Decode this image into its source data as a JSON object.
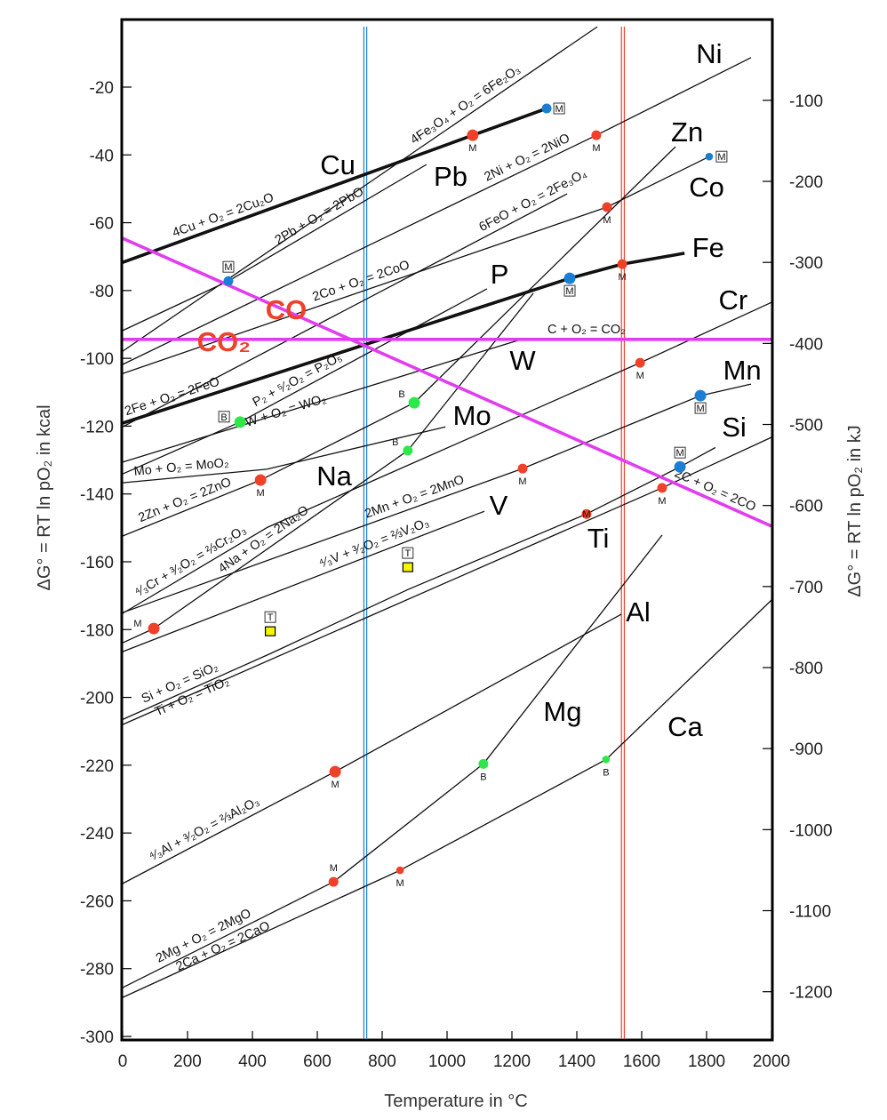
{
  "chart_data": {
    "type": "line",
    "xlabel": "Temperature in °C",
    "ylabel": "ΔG° = RT ln pO₂ in kcal",
    "ylabel_right": "ΔG° = RT ln pO₂ in kJ",
    "xlim": [
      0,
      2000
    ],
    "ylim": [
      -300,
      0
    ],
    "x_ticks": [
      0,
      200,
      400,
      600,
      800,
      1000,
      1200,
      1400,
      1600,
      1800,
      2000
    ],
    "y_ticks": [
      -20,
      -40,
      -60,
      -80,
      -100,
      -120,
      -140,
      -160,
      -180,
      -200,
      -220,
      -240,
      -260,
      -280,
      -300
    ],
    "y_right_ticks_kJ": [
      -100,
      -200,
      -300,
      -400,
      -500,
      -600,
      -700,
      -800,
      -900,
      -1000,
      -1100,
      -1200
    ],
    "grid": false,
    "colors": {
      "line": "#111111",
      "carbon": "#e23cf0",
      "melting": "#f0402a",
      "melting_boxed": "#1a7fd4",
      "boiling": "#2ee84a",
      "transition": "#f5f500",
      "red_text": "#f0402a",
      "vline_blue": "#1a7fd4",
      "vline_red": "#f0402a"
    },
    "series": [
      {
        "name": "Cu",
        "equation": "4Cu + O₂ = 2Cu₂O",
        "eq_at": 320,
        "weight": "thick",
        "x": [
          0,
          1079,
          1307
        ],
        "y": [
          -71.7,
          -34.2,
          -26.3
        ]
      },
      {
        "name": "",
        "equation": "4Fe₃O₄ + O₂ = 6Fe₂O₃",
        "eq_at": 1074,
        "weight": "thin",
        "x": [
          0,
          1463
        ],
        "y": [
          -97.9,
          -2.2
        ]
      },
      {
        "name": "Ni",
        "equation": "2Ni + O₂ = 2NiO",
        "eq_at": 1260,
        "weight": "thin",
        "x": [
          0,
          1460,
          1937
        ],
        "y": [
          -101.8,
          -34.2,
          -11.3
        ]
      },
      {
        "name": "Pb",
        "equation": "2Pb + O₂ = 2PbO",
        "eq_at": 622,
        "weight": "thin",
        "x": [
          0,
          326,
          937
        ],
        "y": [
          -91.8,
          -77.2,
          -42.8
        ]
      },
      {
        "name": "Co",
        "equation": "2Co + O₂ = 2CoO",
        "eq_at": 745,
        "weight": "thin",
        "x": [
          0,
          1493,
          1808
        ],
        "y": [
          -104.5,
          -55.4,
          -40.5
        ]
      },
      {
        "name": "",
        "equation": "6FeO + O₂ = 2Fe₃O₄",
        "eq_at": 1279,
        "weight": "thin",
        "x": [
          0,
          1370
        ],
        "y": [
          -120.2,
          -51.5
        ]
      },
      {
        "name": "Fe",
        "equation": "2Fe + O₂ = 2FeO",
        "eq_at": 162,
        "weight": "thick",
        "x": [
          0,
          1378,
          1540,
          1732
        ],
        "y": [
          -119.1,
          -76.4,
          -72.2,
          -69.0
        ]
      },
      {
        "name": "P",
        "equation": "P₂ + ⁵⁄₂O₂ = P₂O₅",
        "eq_at": 553,
        "weight": "thin",
        "x": [
          0,
          362,
          1123
        ],
        "y": [
          -134.1,
          -118.8,
          -79.5
        ]
      },
      {
        "name": "W",
        "equation": "W + O₂ = WO₂",
        "eq_at": 504,
        "weight": "thin",
        "x": [
          0,
          1225
        ],
        "y": [
          -130.6,
          -94.5
        ]
      },
      {
        "name": "Mo",
        "equation": "Mo + O₂ = MoO₂",
        "eq_at": 184,
        "weight": "thin",
        "x": [
          0,
          444,
          995
        ],
        "y": [
          -136.7,
          -132.7,
          -120.2
        ]
      },
      {
        "name": "Zn",
        "equation": "2Zn + O₂ = 2ZnO",
        "eq_at": 203,
        "weight": "thin",
        "x": [
          0,
          425,
          899,
          1704
        ],
        "y": [
          -152.4,
          -135.9,
          -113.1,
          -37.6
        ]
      },
      {
        "name": "Na",
        "equation": "4Na + O₂ = 2Na₂O",
        "eq_at": 452,
        "weight": "thin",
        "x": [
          0,
          96,
          879,
          1266
        ],
        "y": [
          -183.9,
          -179.7,
          -127.2,
          -80.8
        ]
      },
      {
        "name": "Cr",
        "equation": "⁴⁄₃Cr + ³⁄₂O₂ = ⅔Cr₂O₃",
        "eq_at": 225,
        "weight": "thin",
        "x": [
          0,
          447,
          1595,
          2000
        ],
        "y": [
          -175.2,
          -149.8,
          -101.3,
          -83.5
        ]
      },
      {
        "name": "Mn",
        "equation": "2Mn + O₂ = 2MnO",
        "eq_at": 910,
        "weight": "thin",
        "x": [
          0,
          1233,
          1781,
          1937
        ],
        "y": [
          -175.0,
          -132.5,
          -111.0,
          -107.6
        ]
      },
      {
        "name": "V",
        "equation": "⁴⁄₃V + ³⁄₂O₂ = ⅔V₂O₃",
        "eq_at": 786,
        "weight": "thin",
        "x": [
          0,
          1115
        ],
        "y": [
          -186.5,
          -145.1
        ]
      },
      {
        "name": "Si",
        "equation": "Si + O₂ = SiO₂",
        "eq_at": 189,
        "weight": "thin",
        "x": [
          0,
          455,
          879,
          1430,
          1718,
          1827
        ],
        "y": [
          -206.5,
          -187.1,
          -168.2,
          -145.9,
          -132.0,
          -126.3
        ]
      },
      {
        "name": "Ti",
        "equation": "Ti + O₂ = TiO₂",
        "eq_at": 211,
        "weight": "thin",
        "x": [
          0,
          1663,
          2000
        ],
        "y": [
          -208.0,
          -138.2,
          -123.3
        ]
      },
      {
        "name": "Al",
        "equation": "⁴⁄₃Al + ³⁄₂O₂ = ⅔Al₂O₃",
        "eq_at": 266,
        "weight": "thin",
        "x": [
          0,
          655,
          1537
        ],
        "y": [
          -254.9,
          -221.9,
          -175.5
        ]
      },
      {
        "name": "Mg",
        "equation": "2Mg + O₂ = 2MgO",
        "eq_at": 263,
        "weight": "thin",
        "x": [
          0,
          650,
          1112,
          1663
        ],
        "y": [
          -285.6,
          -254.4,
          -219.6,
          -152.1
        ]
      },
      {
        "name": "Ca",
        "equation": "2Ca + O₂ = 2CaO",
        "eq_at": 315,
        "weight": "thin",
        "x": [
          0,
          855,
          1490,
          2000
        ],
        "y": [
          -288.5,
          -251.0,
          -218.3,
          -171.3
        ]
      },
      {
        "name": "CO₂",
        "equation": "C + O₂ = CO₂",
        "eq_at": 1430,
        "weight": "carbon",
        "x": [
          0,
          2000
        ],
        "y": [
          -94.4,
          -94.4
        ]
      },
      {
        "name": "CO",
        "equation": "2C + O₂ = 2CO",
        "eq_at": 1814,
        "weight": "carbon",
        "x": [
          0,
          2000
        ],
        "y": [
          -64.6,
          -149.5
        ]
      }
    ],
    "markers": [
      {
        "kind": "M",
        "style": "plain",
        "size": "large",
        "x": 1079,
        "y": -34.2
      },
      {
        "kind": "M",
        "style": "plain",
        "size": "medium",
        "x": 1460,
        "y": -34.2
      },
      {
        "kind": "M",
        "style": "plain",
        "size": "medium",
        "x": 1493,
        "y": -55.4
      },
      {
        "kind": "M",
        "style": "plain",
        "size": "medium",
        "x": 1540,
        "y": -72.2
      },
      {
        "kind": "M",
        "style": "plain",
        "size": "large",
        "x": 425,
        "y": -135.9
      },
      {
        "kind": "M",
        "style": "plain",
        "size": "large",
        "x": 96,
        "y": -179.7,
        "label_side": "left"
      },
      {
        "kind": "M",
        "style": "plain",
        "size": "medium",
        "x": 1595,
        "y": -101.3
      },
      {
        "kind": "M",
        "style": "plain",
        "size": "medium",
        "x": 1233,
        "y": -132.5
      },
      {
        "kind": "M",
        "style": "plain",
        "size": "medium",
        "x": 1430,
        "y": -145.9
      },
      {
        "kind": "M",
        "style": "plain",
        "size": "medium",
        "x": 1663,
        "y": -138.2
      },
      {
        "kind": "M",
        "style": "plain",
        "size": "large",
        "x": 655,
        "y": -221.9
      },
      {
        "kind": "M",
        "style": "plain",
        "size": "medium",
        "x": 650,
        "y": -254.4,
        "label_side": "above"
      },
      {
        "kind": "M",
        "style": "plain",
        "size": "small",
        "x": 855,
        "y": -251.0
      },
      {
        "kind": "M",
        "style": "boxed",
        "size": "medium",
        "x": 1307,
        "y": -26.3,
        "label_side": "right"
      },
      {
        "kind": "M",
        "style": "boxed",
        "size": "medium",
        "x": 326,
        "y": -77.2,
        "label_side": "above"
      },
      {
        "kind": "M",
        "style": "boxed",
        "size": "small",
        "x": 1808,
        "y": -40.5,
        "label_side": "right"
      },
      {
        "kind": "M",
        "style": "boxed",
        "size": "large",
        "x": 1378,
        "y": -76.4
      },
      {
        "kind": "M",
        "style": "boxed",
        "size": "large",
        "x": 1781,
        "y": -111.0
      },
      {
        "kind": "M",
        "style": "boxed",
        "size": "large",
        "x": 1718,
        "y": -132.0,
        "label_side": "above"
      },
      {
        "kind": "B",
        "style": "boxed",
        "size": "large",
        "x": 362,
        "y": -118.8,
        "label_side": "left"
      },
      {
        "kind": "B",
        "style": "plain",
        "size": "large",
        "x": 899,
        "y": -113.1,
        "label_side": "aboveleft"
      },
      {
        "kind": "B",
        "style": "plain",
        "size": "medium",
        "x": 879,
        "y": -127.2,
        "label_side": "aboveleft"
      },
      {
        "kind": "B",
        "style": "plain",
        "size": "medium",
        "x": 1112,
        "y": -219.6
      },
      {
        "kind": "B",
        "style": "plain",
        "size": "small",
        "x": 1490,
        "y": -218.3
      },
      {
        "kind": "T",
        "style": "boxed",
        "size": "square",
        "x": 455,
        "y": -180.5,
        "label_side": "above"
      },
      {
        "kind": "T",
        "style": "boxed",
        "size": "square",
        "x": 879,
        "y": -161.6,
        "label_side": "above"
      }
    ],
    "element_labels": [
      {
        "text": "Cu",
        "x": 663,
        "y": -42.8
      },
      {
        "text": "Pb",
        "x": 1011,
        "y": -46.2
      },
      {
        "text": "Ni",
        "x": 1808,
        "y": -10.0
      },
      {
        "text": "Zn",
        "x": 1740,
        "y": -33.1
      },
      {
        "text": "Co",
        "x": 1800,
        "y": -49.4
      },
      {
        "text": "Fe",
        "x": 1805,
        "y": -67.2
      },
      {
        "text": "P",
        "x": 1162,
        "y": -75.1
      },
      {
        "text": "Cr",
        "x": 1882,
        "y": -82.7
      },
      {
        "text": "CO",
        "x": 504,
        "y": -85.5,
        "color": "red"
      },
      {
        "text": "CO₂",
        "x": 312,
        "y": -95.0,
        "color": "red"
      },
      {
        "text": "W",
        "x": 1233,
        "y": -100.5
      },
      {
        "text": "Mn",
        "x": 1910,
        "y": -103.4
      },
      {
        "text": "Mo",
        "x": 1077,
        "y": -116.7
      },
      {
        "text": "Si",
        "x": 1885,
        "y": -120.2
      },
      {
        "text": "Na",
        "x": 652,
        "y": -134.6
      },
      {
        "text": "V",
        "x": 1159,
        "y": -143.2
      },
      {
        "text": "Ti",
        "x": 1466,
        "y": -152.9
      },
      {
        "text": "Al",
        "x": 1589,
        "y": -174.7
      },
      {
        "text": "Mg",
        "x": 1356,
        "y": -204.0
      },
      {
        "text": "Ca",
        "x": 1734,
        "y": -208.5
      }
    ],
    "vertical_lines": [
      {
        "x": 748,
        "color": "blue"
      },
      {
        "x": 1542,
        "color": "red"
      }
    ]
  }
}
